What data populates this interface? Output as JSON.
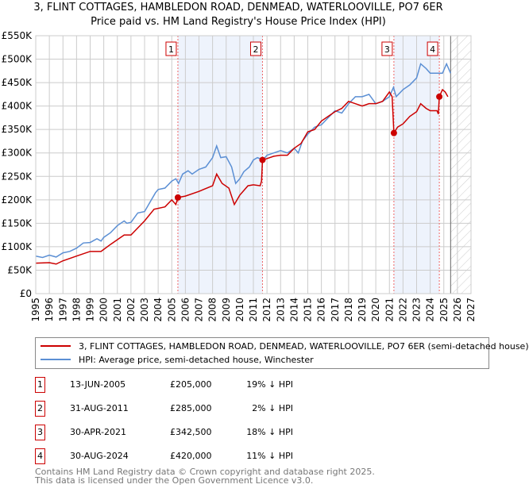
{
  "chart_data": {
    "type": "line",
    "title": "3, FLINT COTTAGES, HAMBLEDON ROAD, DENMEAD, WATERLOOVILLE, PO7 6ER",
    "subtitle": "Price paid vs. HM Land Registry's House Price Index (HPI)",
    "xlim": [
      1995,
      2027
    ],
    "ylim": [
      0,
      550000
    ],
    "x_ticks": [
      "1995",
      "1996",
      "1997",
      "1998",
      "1999",
      "2000",
      "2001",
      "2002",
      "2003",
      "2004",
      "2005",
      "2006",
      "2007",
      "2008",
      "2009",
      "2010",
      "2011",
      "2012",
      "2013",
      "2014",
      "2015",
      "2016",
      "2017",
      "2018",
      "2019",
      "2020",
      "2021",
      "2022",
      "2023",
      "2024",
      "2025",
      "2026",
      "2027"
    ],
    "y_ticks": [
      {
        "v": 0,
        "label": "£0"
      },
      {
        "v": 50000,
        "label": "£50K"
      },
      {
        "v": 100000,
        "label": "£100K"
      },
      {
        "v": 150000,
        "label": "£150K"
      },
      {
        "v": 200000,
        "label": "£200K"
      },
      {
        "v": 250000,
        "label": "£250K"
      },
      {
        "v": 300000,
        "label": "£300K"
      },
      {
        "v": 350000,
        "label": "£350K"
      },
      {
        "v": 400000,
        "label": "£400K"
      },
      {
        "v": 450000,
        "label": "£450K"
      },
      {
        "v": 500000,
        "label": "£500K"
      },
      {
        "v": 550000,
        "label": "£550K"
      }
    ],
    "grid": true,
    "shaded_ranges": [
      [
        2005.45,
        2011.67
      ],
      [
        2021.33,
        2024.67
      ]
    ],
    "forecast_hatch_from": 2025.5,
    "series": [
      {
        "name": "3, FLINT COTTAGES, HAMBLEDON ROAD, DENMEAD, WATERLOOVILLE, PO7 6ER (semi-detached house)",
        "color": "#cc0000",
        "x": [
          1995,
          1996,
          1996.5,
          1997,
          1998,
          1999,
          1999.8,
          2000.5,
          2001.5,
          2002,
          2002.5,
          2003,
          2003.7,
          2004.5,
          2005,
          2005.3,
          2005.45,
          2006,
          2007,
          2008,
          2008.3,
          2008.7,
          2009.2,
          2009.6,
          2010,
          2010.6,
          2011,
          2011.5,
          2011.6,
          2011.67,
          2012,
          2012.5,
          2013,
          2013.5,
          2014,
          2014.5,
          2015,
          2015.5,
          2016,
          2016.5,
          2017,
          2017.5,
          2018,
          2018.5,
          2019,
          2019.5,
          2020,
          2020.5,
          2021,
          2021.2,
          2021.33,
          2021.6,
          2022,
          2022.5,
          2023,
          2023.3,
          2023.7,
          2024,
          2024.5,
          2024.6,
          2024.67,
          2024.9,
          2025.1,
          2025.3
        ],
        "y": [
          65000,
          66000,
          63000,
          70000,
          80000,
          90000,
          90000,
          105000,
          125000,
          125000,
          140000,
          155000,
          180000,
          185000,
          200000,
          190000,
          205000,
          208000,
          218000,
          230000,
          255000,
          235000,
          225000,
          190000,
          210000,
          230000,
          232000,
          230000,
          240000,
          285000,
          288000,
          293000,
          295000,
          295000,
          310000,
          320000,
          345000,
          350000,
          368000,
          378000,
          388000,
          395000,
          410000,
          405000,
          400000,
          405000,
          405000,
          410000,
          430000,
          420000,
          342500,
          355000,
          362000,
          378000,
          388000,
          405000,
          395000,
          390000,
          390000,
          383000,
          420000,
          435000,
          430000,
          420000
        ]
      },
      {
        "name": "HPI: Average price, semi-detached house, Winchester",
        "color": "#5b8fd4",
        "x": [
          1995,
          1995.5,
          1996,
          1996.5,
          1997,
          1997.5,
          1998,
          1998.5,
          1999,
          1999.5,
          1999.8,
          2000,
          2000.5,
          2001,
          2001.5,
          2001.7,
          2002,
          2002.5,
          2003,
          2003.3,
          2003.8,
          2004,
          2004.5,
          2005,
          2005.3,
          2005.5,
          2005.8,
          2006.2,
          2006.5,
          2007,
          2007.5,
          2008,
          2008.3,
          2008.6,
          2009,
          2009.4,
          2009.7,
          2010,
          2010.3,
          2010.7,
          2011,
          2011.3,
          2011.7,
          2012,
          2012.5,
          2013,
          2013.5,
          2014,
          2014.3,
          2014.6,
          2015,
          2015.5,
          2016,
          2016.5,
          2017,
          2017.5,
          2018,
          2018.5,
          2019,
          2019.5,
          2020,
          2020.5,
          2021,
          2021.3,
          2021.5,
          2022,
          2022.5,
          2023,
          2023.3,
          2023.7,
          2024,
          2024.5,
          2024.9,
          2025.2,
          2025.5
        ],
        "y": [
          80000,
          77000,
          82000,
          78000,
          87000,
          90000,
          97000,
          108000,
          109000,
          117000,
          112000,
          120000,
          130000,
          145000,
          155000,
          150000,
          152000,
          172000,
          175000,
          190000,
          215000,
          222000,
          225000,
          240000,
          245000,
          235000,
          255000,
          262000,
          255000,
          265000,
          270000,
          290000,
          315000,
          290000,
          292000,
          270000,
          235000,
          245000,
          260000,
          270000,
          285000,
          290000,
          285000,
          295000,
          300000,
          305000,
          300000,
          310000,
          300000,
          325000,
          340000,
          355000,
          360000,
          375000,
          390000,
          385000,
          405000,
          420000,
          420000,
          425000,
          405000,
          410000,
          420000,
          440000,
          420000,
          435000,
          445000,
          460000,
          490000,
          480000,
          470000,
          470000,
          470000,
          490000,
          470000
        ]
      }
    ],
    "sales": [
      {
        "n": "1",
        "x": 2005.45,
        "y": 205000
      },
      {
        "n": "2",
        "x": 2011.67,
        "y": 285000
      },
      {
        "n": "3",
        "x": 2021.33,
        "y": 342500
      },
      {
        "n": "4",
        "x": 2024.67,
        "y": 420000
      }
    ]
  },
  "legend": {
    "red": "3, FLINT COTTAGES, HAMBLEDON ROAD, DENMEAD, WATERLOOVILLE, PO7 6ER (semi-detached house)",
    "blue": "HPI: Average price, semi-detached house, Winchester"
  },
  "table": [
    {
      "n": "1",
      "date": "13-JUN-2005",
      "price": "£205,000",
      "hpi": "19% ↓ HPI"
    },
    {
      "n": "2",
      "date": "31-AUG-2011",
      "price": "£285,000",
      "hpi": "2% ↓ HPI"
    },
    {
      "n": "3",
      "date": "30-APR-2021",
      "price": "£342,500",
      "hpi": "18% ↓ HPI"
    },
    {
      "n": "4",
      "date": "30-AUG-2024",
      "price": "£420,000",
      "hpi": "11% ↓ HPI"
    }
  ],
  "footer": {
    "line1": "Contains HM Land Registry data © Crown copyright and database right 2025.",
    "line2": "This data is licensed under the Open Government Licence v3.0."
  }
}
